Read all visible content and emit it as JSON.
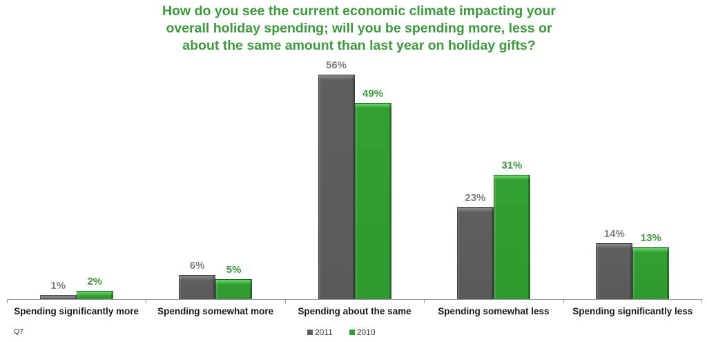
{
  "title": {
    "line1": "How do you see the current economic climate impacting your",
    "line2": "overall holiday spending; will you be spending more, less or",
    "line3": "about the same amount than last year on holiday gifts?"
  },
  "footnote": "Q7",
  "colors": {
    "2011": "#5f5f5f",
    "2010": "#33a033",
    "title": "#3c9a3c"
  },
  "legend": [
    {
      "label": "2011",
      "color": "#5f5f5f"
    },
    {
      "label": "2010",
      "color": "#33a033"
    }
  ],
  "categories": [
    {
      "label": "Spending significantly more",
      "v2011": "1%",
      "v2010": "2%"
    },
    {
      "label": "Spending somewhat more",
      "v2011": "6%",
      "v2010": "5%"
    },
    {
      "label": "Spending about the same",
      "v2011": "56%",
      "v2010": "49%"
    },
    {
      "label": "Spending somewhat less",
      "v2011": "23%",
      "v2010": "31%"
    },
    {
      "label": "Spending significantly less",
      "v2011": "14%",
      "v2010": "13%"
    }
  ],
  "chart_data": {
    "type": "bar",
    "title": "How do you see the current economic climate impacting your overall holiday spending; will you be spending more, less or about the same amount than last year on holiday gifts?",
    "categories": [
      "Spending significantly more",
      "Spending somewhat more",
      "Spending about the same",
      "Spending somewhat less",
      "Spending significantly less"
    ],
    "series": [
      {
        "name": "2011",
        "values": [
          1,
          6,
          56,
          23,
          14
        ]
      },
      {
        "name": "2010",
        "values": [
          2,
          5,
          49,
          31,
          13
        ]
      }
    ],
    "xlabel": "",
    "ylabel": "",
    "unit": "%",
    "ylim": [
      0,
      60
    ],
    "grid": false,
    "legend_position": "bottom",
    "data_labels": true,
    "footnote": "Q7"
  }
}
